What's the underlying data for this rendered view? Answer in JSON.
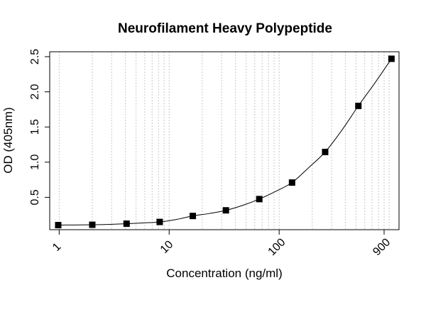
{
  "chart_data": {
    "type": "scatter",
    "title": "Neurofilament Heavy Polypeptide",
    "xlabel": "Concentration (ng/ml)",
    "ylabel": "OD (405nm)",
    "x_scale": "log",
    "xlim": [
      0.82,
      1230
    ],
    "ylim": [
      0.04,
      2.57
    ],
    "x_ticks": [
      1,
      10,
      100,
      900
    ],
    "x_tick_labels": [
      "1",
      "10",
      "100",
      "900"
    ],
    "y_ticks": [
      0.5,
      1.0,
      1.5,
      2.0,
      2.5
    ],
    "y_tick_labels": [
      "0.5",
      "1.0",
      "1.5",
      "2.0",
      "2.5"
    ],
    "grid": "vertical dotted at log minor ticks",
    "series": [
      {
        "marker": "square",
        "color": "#000000",
        "points": [
          {
            "x": 0.98,
            "y": 0.105
          },
          {
            "x": 2.0,
            "y": 0.11
          },
          {
            "x": 4.1,
            "y": 0.125
          },
          {
            "x": 8.2,
            "y": 0.15
          },
          {
            "x": 16.4,
            "y": 0.235
          },
          {
            "x": 32.8,
            "y": 0.315
          },
          {
            "x": 66,
            "y": 0.475
          },
          {
            "x": 131,
            "y": 0.71
          },
          {
            "x": 262,
            "y": 1.145
          },
          {
            "x": 525,
            "y": 1.8
          },
          {
            "x": 1050,
            "y": 2.47
          }
        ]
      }
    ],
    "fit_line": {
      "color": "#000000",
      "points": [
        {
          "x": 0.98,
          "y": 0.105
        },
        {
          "x": 1.4,
          "y": 0.107
        },
        {
          "x": 2.0,
          "y": 0.11
        },
        {
          "x": 2.9,
          "y": 0.116
        },
        {
          "x": 4.1,
          "y": 0.125
        },
        {
          "x": 5.8,
          "y": 0.136
        },
        {
          "x": 8.2,
          "y": 0.15
        },
        {
          "x": 11.6,
          "y": 0.185
        },
        {
          "x": 16.4,
          "y": 0.235
        },
        {
          "x": 23.2,
          "y": 0.27
        },
        {
          "x": 32.8,
          "y": 0.315
        },
        {
          "x": 46.5,
          "y": 0.385
        },
        {
          "x": 66,
          "y": 0.475
        },
        {
          "x": 93,
          "y": 0.585
        },
        {
          "x": 131,
          "y": 0.71
        },
        {
          "x": 185,
          "y": 0.92
        },
        {
          "x": 262,
          "y": 1.145
        },
        {
          "x": 370,
          "y": 1.45
        },
        {
          "x": 525,
          "y": 1.8
        },
        {
          "x": 745,
          "y": 2.13
        },
        {
          "x": 1050,
          "y": 2.47
        }
      ]
    }
  }
}
